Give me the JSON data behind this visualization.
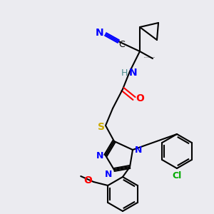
{
  "bg_color": "#ebebf0",
  "atom_colors": {
    "N": "#0000ff",
    "O": "#ff0000",
    "S": "#ccaa00",
    "Cl": "#00aa00",
    "C_label": "#000000",
    "H": "#4a8a8a",
    "triple_bond": "#0000ff"
  },
  "bond_color": "#000000",
  "bond_width": 1.5,
  "font_size_atom": 9,
  "font_size_small": 7
}
